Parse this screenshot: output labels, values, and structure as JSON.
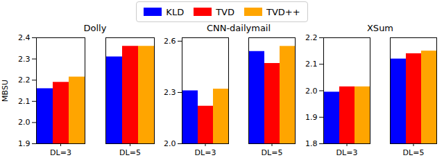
{
  "chart_data": [
    {
      "type": "bar",
      "title": "Dolly",
      "y_label": "MBSU",
      "legend": "top",
      "categories": [
        "DL=3",
        "DL=5"
      ],
      "series": [
        {
          "name": "KLD",
          "color": "#0000ff",
          "values": [
            2.16,
            2.31
          ]
        },
        {
          "name": "TVD",
          "color": "#ff0000",
          "values": [
            2.19,
            2.36
          ]
        },
        {
          "name": "TVD++",
          "color": "#ffa500",
          "values": [
            2.215,
            2.36
          ]
        }
      ],
      "ylim": [
        1.9,
        2.4
      ],
      "yticks": [
        1.9,
        {
          "value": 2,
          "label": "2.0"
        },
        2.1,
        2.2,
        2.3,
        2.4
      ]
    },
    {
      "type": "bar",
      "title": "CNN-dailymail",
      "categories": [
        "DL=3",
        "DL=5"
      ],
      "series": [
        {
          "name": "KLD",
          "color": "#0000ff",
          "values": [
            2.31,
            2.54
          ]
        },
        {
          "name": "TVD",
          "color": "#ff0000",
          "values": [
            2.22,
            2.47
          ]
        },
        {
          "name": "TVD++",
          "color": "#ffa500",
          "values": [
            2.32,
            2.57
          ]
        }
      ],
      "ylim": [
        2.0,
        2.62
      ],
      "yticks": [
        {
          "value": 2,
          "label": "2.0"
        },
        2.3,
        2.6
      ]
    },
    {
      "type": "bar",
      "title": "XSum",
      "categories": [
        "DL=3",
        "DL=5"
      ],
      "series": [
        {
          "name": "KLD",
          "color": "#0000ff",
          "values": [
            1.995,
            2.12
          ]
        },
        {
          "name": "TVD",
          "color": "#ff0000",
          "values": [
            2.015,
            2.14
          ]
        },
        {
          "name": "TVD++",
          "color": "#ffa500",
          "values": [
            2.015,
            2.15
          ]
        }
      ],
      "ylim": [
        1.8,
        2.2
      ],
      "yticks": [
        1.8,
        1.9,
        {
          "value": 2,
          "label": "2.0"
        },
        2.1,
        2.2
      ]
    }
  ]
}
